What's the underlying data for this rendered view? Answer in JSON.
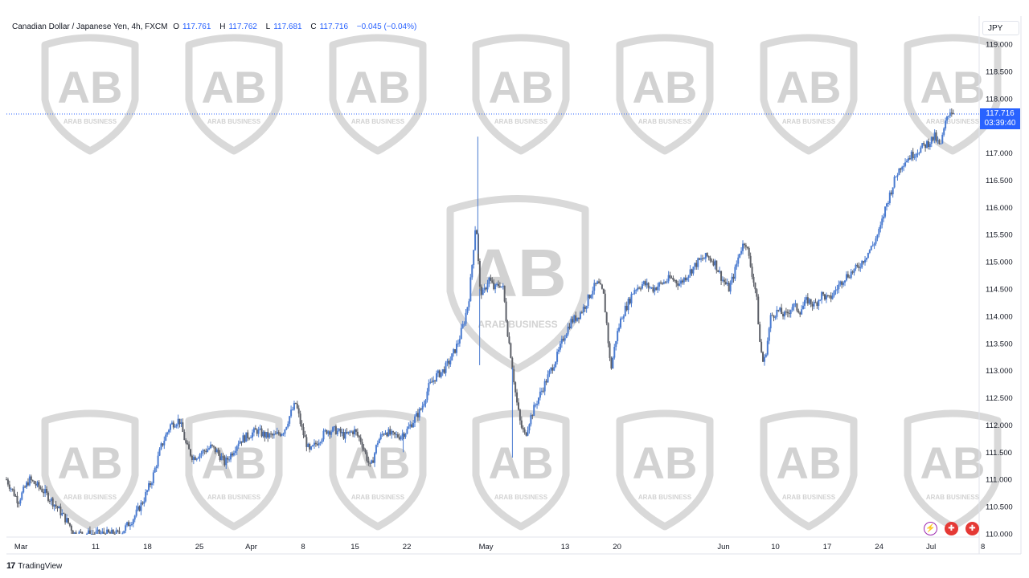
{
  "header": {
    "symbol": "Canadian Dollar / Japanese Yen, 4h, FXCM",
    "o_label": "O",
    "o_value": "117.761",
    "h_label": "H",
    "h_value": "117.762",
    "l_label": "L",
    "l_value": "117.681",
    "c_label": "C",
    "c_value": "117.716",
    "change": "−0.045 (−0.04%)"
  },
  "currency": "JPY",
  "price_tag": {
    "price": "117.716",
    "countdown": "03:39:40"
  },
  "footer": {
    "logo": "17",
    "brand": "TradingView"
  },
  "watermark": {
    "letters": "AB",
    "line1": "ARAB BUSINESS"
  },
  "colors": {
    "up": "#2962ff",
    "down": "#131722",
    "candle_up": "#4a7bd0",
    "candle_down": "#5d6068",
    "last_price": "#2962ff"
  },
  "chart_data": {
    "type": "candlestick",
    "ylim": [
      110.0,
      119.0
    ],
    "y_ticks": [
      "119.000",
      "118.500",
      "118.000",
      "117.500",
      "117.000",
      "116.500",
      "116.000",
      "115.500",
      "115.000",
      "114.500",
      "114.000",
      "113.500",
      "113.000",
      "112.500",
      "112.000",
      "111.500",
      "111.000",
      "110.500",
      "110.000"
    ],
    "x_ticks": [
      {
        "label": "Mar",
        "x": 0.016
      },
      {
        "label": "11",
        "x": 0.098
      },
      {
        "label": "18",
        "x": 0.155
      },
      {
        "label": "25",
        "x": 0.212
      },
      {
        "label": "Apr",
        "x": 0.269
      },
      {
        "label": "8",
        "x": 0.326
      },
      {
        "label": "15",
        "x": 0.383
      },
      {
        "label": "22",
        "x": 0.44
      },
      {
        "label": "May",
        "x": 0.527
      },
      {
        "label": "13",
        "x": 0.614
      },
      {
        "label": "20",
        "x": 0.671
      },
      {
        "label": "Jun",
        "x": 0.788
      },
      {
        "label": "10",
        "x": 0.845
      },
      {
        "label": "17",
        "x": 0.902
      },
      {
        "label": "24",
        "x": 0.959
      },
      {
        "label": "Jul",
        "x": 1.016
      },
      {
        "label": "8",
        "x": 1.073
      }
    ],
    "last_price": 117.716,
    "path": [
      [
        0.0,
        111.0
      ],
      [
        0.013,
        110.6
      ],
      [
        0.025,
        111.0
      ],
      [
        0.04,
        110.8
      ],
      [
        0.055,
        110.5
      ],
      [
        0.068,
        110.2
      ],
      [
        0.075,
        110.0
      ],
      [
        0.125,
        110.0
      ],
      [
        0.14,
        110.3
      ],
      [
        0.15,
        110.6
      ],
      [
        0.16,
        111.0
      ],
      [
        0.17,
        111.6
      ],
      [
        0.18,
        112.0
      ],
      [
        0.19,
        112.1
      ],
      [
        0.198,
        111.6
      ],
      [
        0.205,
        111.4
      ],
      [
        0.215,
        111.5
      ],
      [
        0.225,
        111.6
      ],
      [
        0.232,
        111.5
      ],
      [
        0.24,
        111.3
      ],
      [
        0.248,
        111.5
      ],
      [
        0.255,
        111.7
      ],
      [
        0.265,
        111.8
      ],
      [
        0.275,
        111.9
      ],
      [
        0.285,
        111.8
      ],
      [
        0.295,
        111.8
      ],
      [
        0.305,
        111.9
      ],
      [
        0.312,
        112.2
      ],
      [
        0.318,
        112.4
      ],
      [
        0.325,
        111.9
      ],
      [
        0.333,
        111.5
      ],
      [
        0.342,
        111.7
      ],
      [
        0.352,
        111.9
      ],
      [
        0.362,
        111.9
      ],
      [
        0.372,
        111.8
      ],
      [
        0.382,
        111.9
      ],
      [
        0.39,
        111.7
      ],
      [
        0.4,
        111.2
      ],
      [
        0.408,
        111.7
      ],
      [
        0.416,
        111.9
      ],
      [
        0.424,
        111.8
      ],
      [
        0.432,
        111.8
      ],
      [
        0.44,
        111.9
      ],
      [
        0.448,
        112.1
      ],
      [
        0.456,
        112.3
      ],
      [
        0.464,
        112.7
      ],
      [
        0.472,
        112.9
      ],
      [
        0.48,
        113.0
      ],
      [
        0.488,
        113.2
      ],
      [
        0.496,
        113.5
      ],
      [
        0.503,
        113.9
      ],
      [
        0.508,
        114.3
      ],
      [
        0.512,
        115.0
      ],
      [
        0.516,
        115.8
      ],
      [
        0.52,
        114.5
      ],
      [
        0.524,
        114.4
      ],
      [
        0.53,
        114.7
      ],
      [
        0.536,
        114.5
      ],
      [
        0.542,
        114.6
      ],
      [
        0.546,
        114.5
      ],
      [
        0.55,
        113.8
      ],
      [
        0.555,
        113.2
      ],
      [
        0.56,
        112.5
      ],
      [
        0.565,
        112.0
      ],
      [
        0.57,
        111.8
      ],
      [
        0.575,
        112.1
      ],
      [
        0.582,
        112.4
      ],
      [
        0.59,
        112.7
      ],
      [
        0.598,
        113.0
      ],
      [
        0.606,
        113.3
      ],
      [
        0.612,
        113.6
      ],
      [
        0.62,
        113.9
      ],
      [
        0.628,
        114.0
      ],
      [
        0.636,
        114.2
      ],
      [
        0.644,
        114.5
      ],
      [
        0.65,
        114.6
      ],
      [
        0.656,
        114.4
      ],
      [
        0.66,
        113.8
      ],
      [
        0.664,
        113.0
      ],
      [
        0.67,
        113.6
      ],
      [
        0.676,
        114.0
      ],
      [
        0.682,
        114.2
      ],
      [
        0.69,
        114.5
      ],
      [
        0.7,
        114.6
      ],
      [
        0.71,
        114.5
      ],
      [
        0.72,
        114.6
      ],
      [
        0.73,
        114.7
      ],
      [
        0.74,
        114.6
      ],
      [
        0.75,
        114.8
      ],
      [
        0.76,
        115.0
      ],
      [
        0.77,
        115.1
      ],
      [
        0.778,
        115.0
      ],
      [
        0.786,
        114.7
      ],
      [
        0.794,
        114.5
      ],
      [
        0.8,
        114.8
      ],
      [
        0.806,
        115.2
      ],
      [
        0.812,
        115.4
      ],
      [
        0.818,
        114.9
      ],
      [
        0.824,
        114.4
      ],
      [
        0.828,
        113.5
      ],
      [
        0.832,
        113.1
      ],
      [
        0.836,
        113.5
      ],
      [
        0.84,
        114.0
      ],
      [
        0.848,
        114.1
      ],
      [
        0.856,
        114.0
      ],
      [
        0.864,
        114.2
      ],
      [
        0.872,
        114.1
      ],
      [
        0.88,
        114.3
      ],
      [
        0.888,
        114.2
      ],
      [
        0.896,
        114.4
      ],
      [
        0.904,
        114.3
      ],
      [
        0.912,
        114.5
      ],
      [
        0.92,
        114.7
      ],
      [
        0.928,
        114.8
      ],
      [
        0.936,
        114.9
      ],
      [
        0.944,
        115.1
      ],
      [
        0.952,
        115.3
      ],
      [
        0.96,
        115.6
      ],
      [
        0.966,
        116.0
      ],
      [
        0.972,
        116.3
      ],
      [
        0.978,
        116.6
      ],
      [
        0.984,
        116.8
      ],
      [
        0.99,
        116.9
      ],
      [
        0.998,
        117.0
      ],
      [
        1.006,
        117.1
      ],
      [
        1.014,
        117.2
      ],
      [
        1.02,
        117.3
      ],
      [
        1.026,
        117.1
      ],
      [
        1.03,
        117.4
      ],
      [
        1.034,
        117.7
      ],
      [
        1.038,
        117.8
      ],
      [
        1.041,
        117.716
      ]
    ],
    "spikes": [
      {
        "x": 0.518,
        "high": 117.3
      },
      {
        "x": 0.52,
        "low": 113.1
      },
      {
        "x": 0.556,
        "low": 111.4
      },
      {
        "x": 0.436,
        "low": 111.5
      }
    ]
  }
}
